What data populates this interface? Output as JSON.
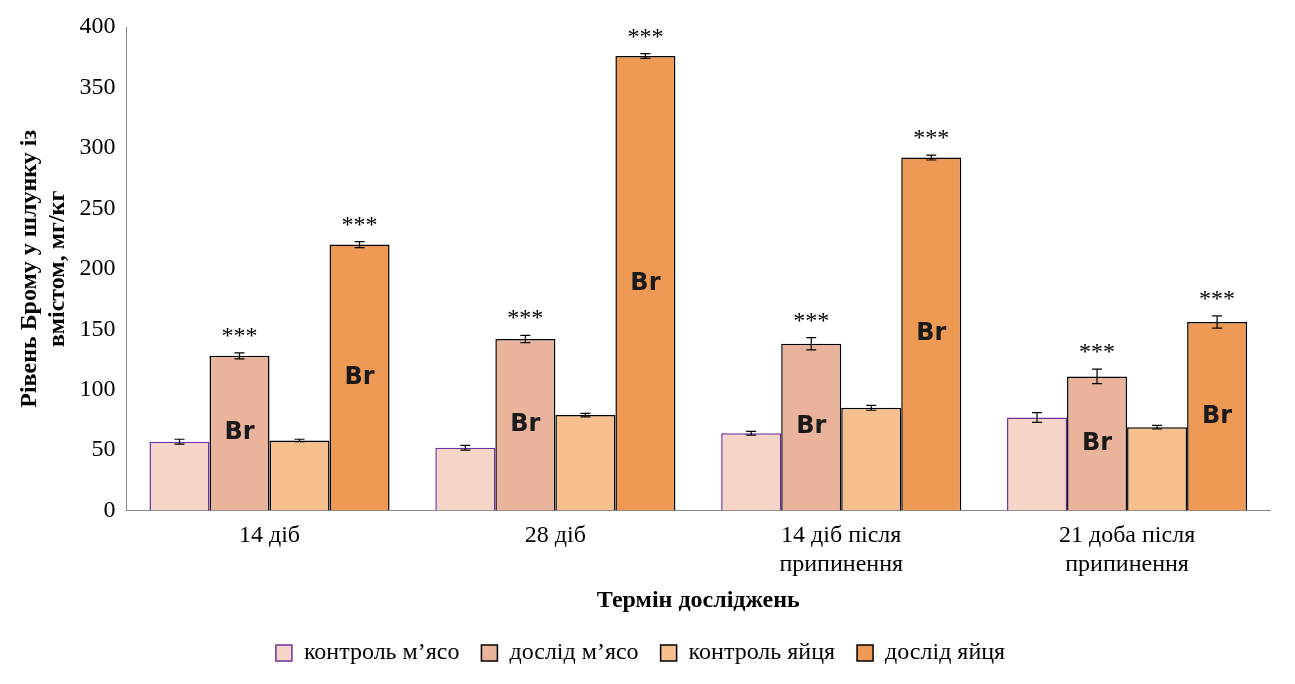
{
  "chart_data": {
    "type": "bar",
    "y_label": "Рівень Брому у шлунку із вмістом, мг/кг",
    "x_label": "Термін досліджень",
    "categories": [
      "14 діб",
      "28 діб",
      "14 діб після припинення",
      "21 доба після припинення"
    ],
    "series": [
      {
        "name": "контроль м’ясо",
        "color": "#f5d5c8",
        "values": [
          57,
          52,
          64,
          77
        ],
        "errors": [
          2,
          2,
          1.5,
          4
        ]
      },
      {
        "name": "дослід м’ясо",
        "color": "#eab39c",
        "values": [
          128,
          142,
          138,
          111
        ],
        "errors": [
          2.5,
          3,
          5,
          6
        ],
        "significance": [
          "***",
          "***",
          "***",
          "***"
        ],
        "bar_label": "Br"
      },
      {
        "name": "контроль яйця",
        "color": "#f6c08e",
        "values": [
          58,
          79,
          85,
          69
        ],
        "errors": [
          1,
          1.5,
          2,
          1.5
        ]
      },
      {
        "name": "дослід яйця",
        "color": "#ee9a55",
        "values": [
          220,
          376,
          292,
          156
        ],
        "errors": [
          2.5,
          2,
          2,
          5
        ],
        "significance": [
          "***",
          "***",
          "***",
          "***"
        ],
        "bar_label": "Br"
      }
    ],
    "ylim": [
      0,
      400
    ],
    "yticks": [
      0,
      50,
      100,
      150,
      200,
      250,
      300,
      350,
      400
    ],
    "grid": false,
    "legend": "bottom"
  }
}
